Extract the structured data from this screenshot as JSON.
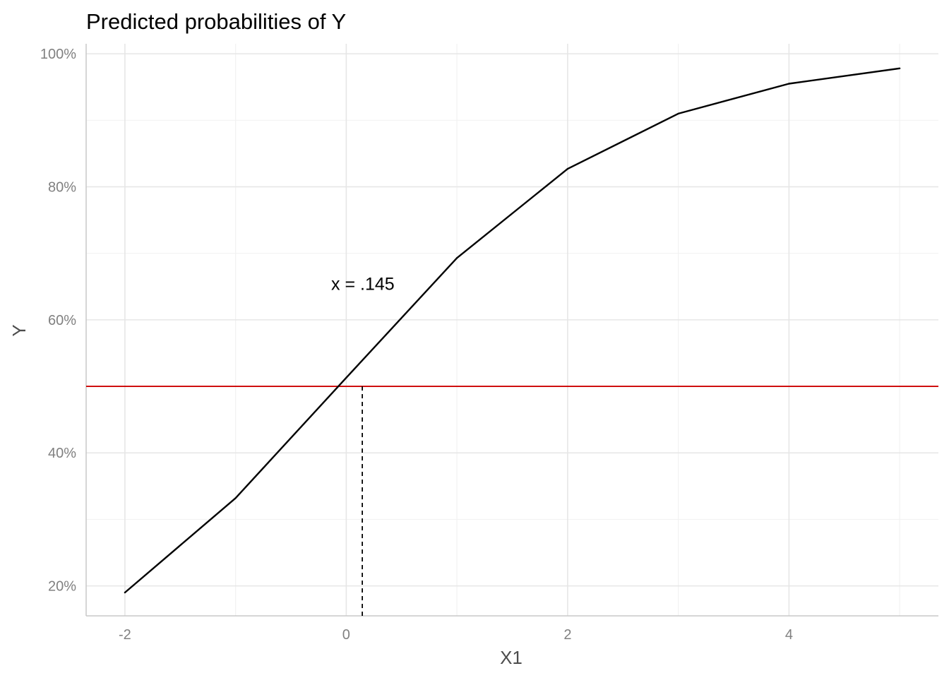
{
  "chart_data": {
    "type": "line",
    "title": "Predicted probabilities of Y",
    "xlabel": "X1",
    "ylabel": "Y",
    "xlim": [
      -2.35,
      5.35
    ],
    "ylim": [
      0.155,
      1.015
    ],
    "x_ticks": [
      -2,
      0,
      2,
      4
    ],
    "x_tick_labels": [
      "-2",
      "0",
      "2",
      "4"
    ],
    "x_minor_ticks": [
      -1,
      1,
      3,
      5
    ],
    "y_ticks": [
      0.2,
      0.4,
      0.6,
      0.8,
      1.0
    ],
    "y_tick_labels": [
      "20%",
      "40%",
      "60%",
      "80%",
      "100%"
    ],
    "y_minor_ticks": [
      0.3,
      0.5,
      0.7,
      0.9
    ],
    "grid": true,
    "legend": "none",
    "series": [
      {
        "x": [
          -2,
          -1,
          0,
          1,
          2,
          3,
          4,
          5
        ],
        "values": [
          0.19,
          0.332,
          0.513,
          0.693,
          0.827,
          0.91,
          0.955,
          0.978
        ],
        "color": "#000000"
      }
    ],
    "hline": {
      "y": 0.5,
      "color": "#cc0000"
    },
    "vline": {
      "x": 0.145,
      "y_top": 0.5,
      "style": "dashed",
      "color": "#000000"
    },
    "annotation": {
      "text": "x = .145",
      "x": 0.15,
      "y": 0.645
    }
  }
}
